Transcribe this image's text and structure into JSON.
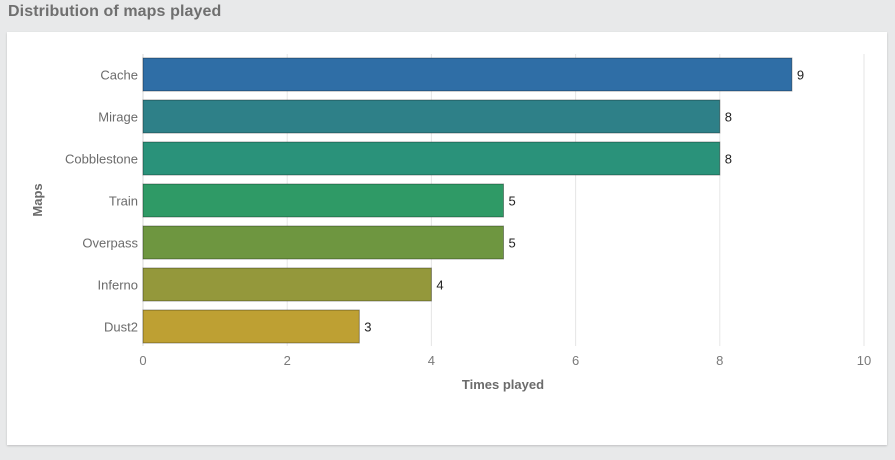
{
  "panel": {
    "title": "Distribution of maps played"
  },
  "chart_data": {
    "type": "bar",
    "orientation": "horizontal",
    "categories": [
      "Cache",
      "Mirage",
      "Cobblestone",
      "Train",
      "Overpass",
      "Inferno",
      "Dust2"
    ],
    "values": [
      9,
      8,
      8,
      5,
      5,
      4,
      3
    ],
    "colors": [
      "#2f6ea6",
      "#2e8088",
      "#2a927a",
      "#2f9a66",
      "#6e9640",
      "#94983b",
      "#bea033"
    ],
    "title": "Distribution of maps played",
    "xlabel": "Times played",
    "ylabel": "Maps",
    "xlim": [
      0,
      10
    ],
    "xticks": [
      0,
      2,
      4,
      6,
      8,
      10
    ],
    "grid": "vertical",
    "data_labels": true
  }
}
